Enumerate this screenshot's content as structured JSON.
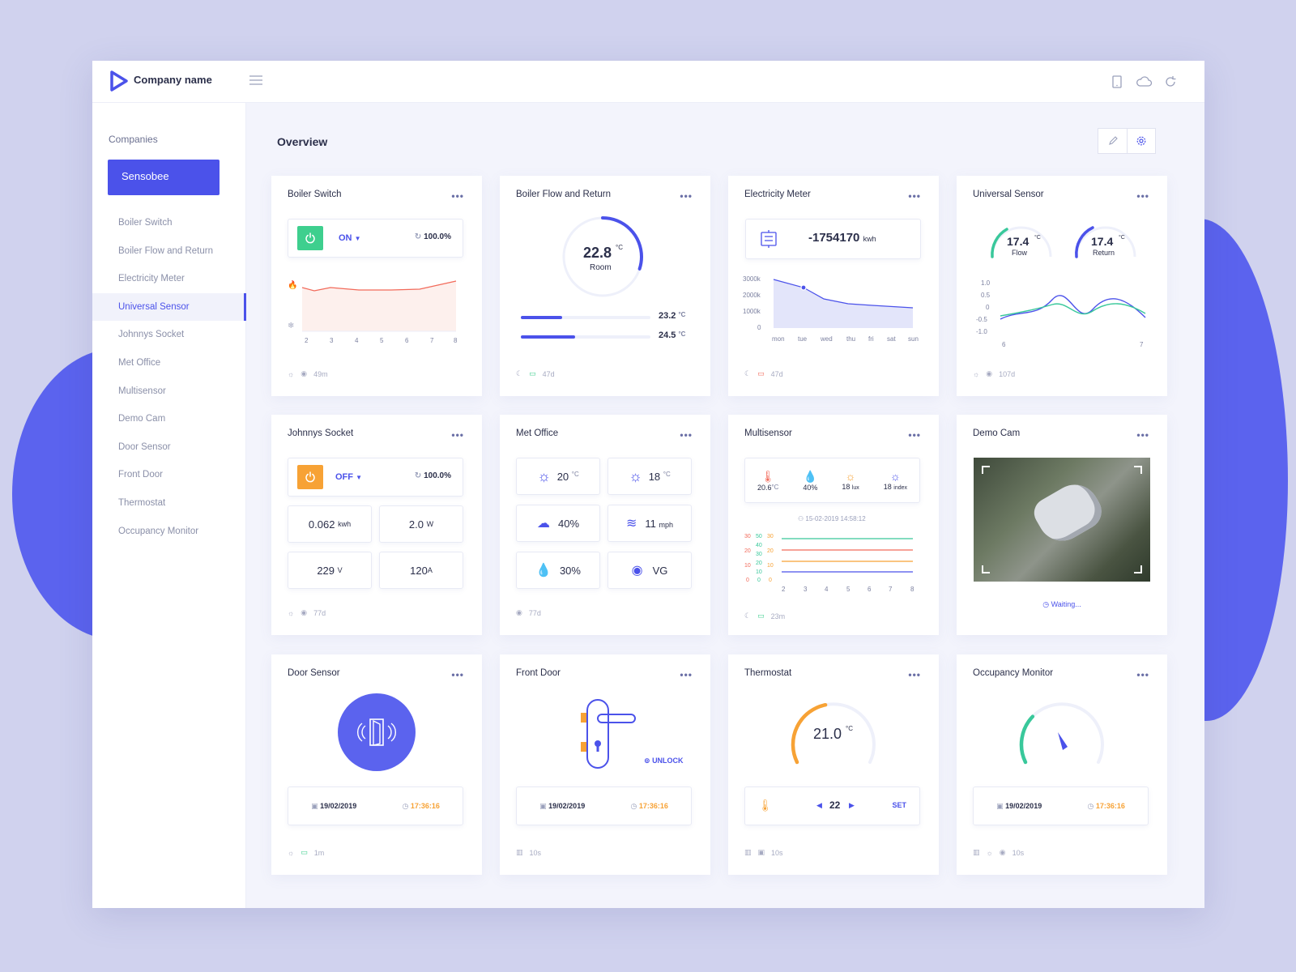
{
  "app": {
    "company_name": "Company name"
  },
  "sidebar": {
    "heading": "Companies",
    "company": "Sensobee",
    "items": [
      "Boiler Switch",
      "Boiler Flow and Return",
      "Electricity Meter",
      "Universal Sensor",
      "Johnnys Socket",
      "Met Office",
      "Multisensor",
      "Demo Cam",
      "Door Sensor",
      "Front Door",
      "Thermostat",
      "Occupancy Monitor"
    ],
    "active": "Universal Sensor"
  },
  "overview": {
    "title": "Overview"
  },
  "cards": {
    "boiler_switch": {
      "title": "Boiler Switch",
      "state": "ON",
      "percent": "100.0%",
      "footer": "49m",
      "x_ticks": [
        "2",
        "3",
        "4",
        "5",
        "6",
        "7",
        "8"
      ]
    },
    "boiler_flow": {
      "title": "Boiler Flow and Return",
      "room_value": "22.8",
      "room_unit": "°C",
      "room_label": "Room",
      "room_fill": 0.3,
      "flow_value": "23.2",
      "flow_unit": "°C",
      "flow_fill": 0.32,
      "return_value": "24.5",
      "return_unit": "°C",
      "return_fill": 0.42,
      "footer": "47d"
    },
    "electricity": {
      "title": "Electricity Meter",
      "value": "-1754170",
      "unit": "kwh",
      "footer": "47d",
      "y_ticks": [
        "3000k",
        "2000k",
        "1000k",
        "0"
      ],
      "x_ticks": [
        "mon",
        "tue",
        "wed",
        "thu",
        "fri",
        "sat",
        "sun"
      ]
    },
    "universal": {
      "title": "Universal Sensor",
      "flow_value": "17.4",
      "flow_label": "Flow",
      "return_value": "17.4",
      "return_label": "Return",
      "unit": "°C",
      "y_ticks": [
        "1.0",
        "0.5",
        "0",
        "-0.5",
        "-1.0"
      ],
      "x_ticks": [
        "6",
        "7"
      ],
      "footer": "107d"
    },
    "johnnys_socket": {
      "title": "Johnnys Socket",
      "state": "OFF",
      "percent": "100.0%",
      "energy": "0.062",
      "energy_unit": "kwh",
      "power": "2.0",
      "power_unit": "W",
      "voltage": "229",
      "voltage_unit": "V",
      "current": "120",
      "current_unit": "A",
      "footer": "77d"
    },
    "met_office": {
      "title": "Met Office",
      "temp1": "20",
      "temp2": "18",
      "temp_unit": "°C",
      "cloud": "40%",
      "wind": "11",
      "wind_unit": "mph",
      "humidity": "30%",
      "visibility": "VG",
      "footer": "77d"
    },
    "multisensor": {
      "title": "Multisensor",
      "temp": "20.6",
      "temp_unit": "°C",
      "humidity": "40%",
      "lux": "18",
      "lux_unit": "lux",
      "index": "18",
      "index_unit": "index",
      "timestamp": "15-02-2019 14:58:12",
      "x_ticks": [
        "2",
        "3",
        "4",
        "5",
        "6",
        "7",
        "8"
      ],
      "y_cols": [
        [
          "30",
          "20",
          "10",
          "0"
        ],
        [
          "50",
          "40",
          "30",
          "20",
          "10",
          "0"
        ],
        [
          "30",
          "20",
          "10",
          "0"
        ]
      ],
      "footer": "23m"
    },
    "demo_cam": {
      "title": "Demo Cam",
      "status": "Waiting..."
    },
    "door_sensor": {
      "title": "Door Sensor",
      "date": "19/02/2019",
      "time": "17:36:16",
      "footer": "1m"
    },
    "front_door": {
      "title": "Front Door",
      "action": "UNLOCK",
      "date": "19/02/2019",
      "time": "17:36:16",
      "footer": "10s"
    },
    "thermostat": {
      "title": "Thermostat",
      "value": "21.0",
      "unit": "°C",
      "setpoint": "22",
      "set_label": "SET",
      "footer": "10s",
      "gauge_fill": 0.45
    },
    "occupancy": {
      "title": "Occupancy Monitor",
      "date": "19/02/2019",
      "time": "17:36:16",
      "footer": "10s",
      "gauge_fill": 0.3
    }
  },
  "colors": {
    "accent": "#4b52ea",
    "green": "#3ecf8e",
    "orange": "#f7a235",
    "red": "#f26a5a",
    "teal": "#39c89b"
  }
}
